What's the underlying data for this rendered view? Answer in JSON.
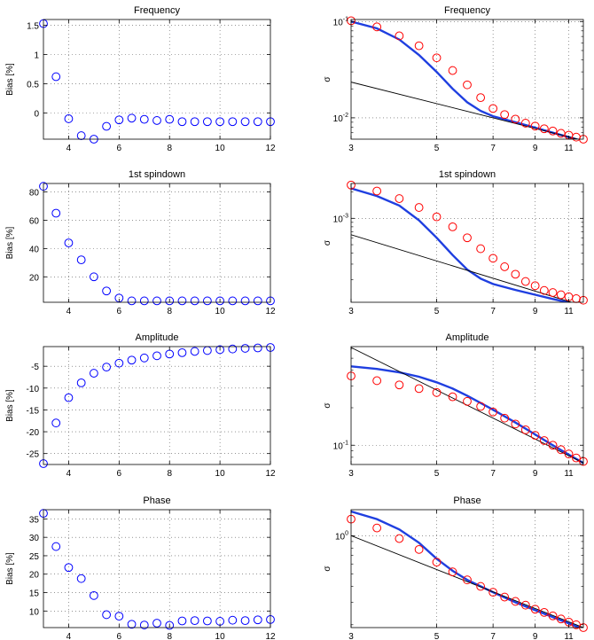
{
  "chart_data": [
    {
      "type": "scatter",
      "scale": "linear",
      "title": "Frequency",
      "ylabel": "Bias [%]",
      "xlim": [
        3,
        12
      ],
      "ylim": [
        -0.45,
        1.6
      ],
      "xticks": [
        4,
        6,
        8,
        10,
        12
      ],
      "xtick_labels": [
        "4",
        "6",
        "8",
        "10",
        "12"
      ],
      "yticks": [
        0,
        0.5,
        1,
        1.5
      ],
      "ytick_labels": [
        "0",
        "0.5",
        "1",
        "1.5"
      ],
      "x": [
        3,
        3.5,
        4,
        4.5,
        5,
        5.5,
        6,
        6.5,
        7,
        7.5,
        8,
        8.5,
        9,
        9.5,
        10,
        10.5,
        11,
        11.5,
        12
      ],
      "series": [
        {
          "name": "bias",
          "color": "#0000ff",
          "marker": "o",
          "y": [
            1.53,
            0.62,
            -0.1,
            -0.39,
            -0.45,
            -0.23,
            -0.12,
            -0.09,
            -0.11,
            -0.13,
            -0.11,
            -0.15,
            -0.15,
            -0.15,
            -0.15,
            -0.15,
            -0.15,
            -0.15,
            -0.15
          ]
        }
      ]
    },
    {
      "type": "line",
      "scale": "loglog",
      "title": "Frequency",
      "ylabel": "σ",
      "xlim": [
        3,
        12
      ],
      "ylim": [
        0.006,
        0.105
      ],
      "xticks": [
        3,
        5,
        7,
        9,
        11
      ],
      "xtick_labels": [
        "3",
        "5",
        "7",
        "9",
        "11"
      ],
      "yticks": [
        0.01,
        0.1
      ],
      "ytick_labels": [
        "10-2",
        "10-1"
      ],
      "x": [
        3,
        3.5,
        4,
        4.5,
        5,
        5.5,
        6,
        6.5,
        7,
        7.5,
        8,
        8.5,
        9,
        9.5,
        10,
        10.5,
        11,
        11.5,
        12
      ],
      "series": [
        {
          "name": "markers",
          "color": "#ff0000",
          "marker": "o",
          "y": [
            0.102,
            0.088,
            0.071,
            0.056,
            0.042,
            0.031,
            0.022,
            0.0162,
            0.0125,
            0.0108,
            0.0097,
            0.0088,
            0.0082,
            0.0077,
            0.0073,
            0.0069,
            0.0066,
            0.0063,
            0.006
          ]
        },
        {
          "name": "thick",
          "color": "#1f3fe0",
          "line": "thick",
          "x": [
            3,
            3.5,
            4,
            4.5,
            5,
            5.5,
            6,
            6.5,
            7,
            8,
            9,
            10,
            11,
            12
          ],
          "y": [
            0.1,
            0.085,
            0.065,
            0.045,
            0.03,
            0.02,
            0.0145,
            0.0118,
            0.0104,
            0.009,
            0.0079,
            0.007,
            0.0063,
            0.0057
          ]
        },
        {
          "name": "thin",
          "color": "#000000",
          "line": "thin",
          "x": [
            3,
            12
          ],
          "y": [
            0.0235,
            0.0058
          ]
        }
      ]
    },
    {
      "type": "scatter",
      "scale": "linear",
      "title": "1st spindown",
      "ylabel": "Bias [%]",
      "xlim": [
        3,
        12
      ],
      "ylim": [
        2,
        86
      ],
      "xticks": [
        4,
        6,
        8,
        10,
        12
      ],
      "xtick_labels": [
        "4",
        "6",
        "8",
        "10",
        "12"
      ],
      "yticks": [
        20,
        40,
        60,
        80
      ],
      "ytick_labels": [
        "20",
        "40",
        "60",
        "80"
      ],
      "x": [
        3,
        3.5,
        4,
        4.5,
        5,
        5.5,
        6,
        6.5,
        7,
        7.5,
        8,
        8.5,
        9,
        9.5,
        10,
        10.5,
        11,
        11.5,
        12
      ],
      "series": [
        {
          "name": "bias",
          "color": "#0000ff",
          "marker": "o",
          "y": [
            84,
            65,
            44,
            32,
            20,
            10,
            5,
            3,
            3,
            3,
            3,
            3,
            3,
            3,
            3,
            3,
            3,
            3,
            3
          ]
        }
      ]
    },
    {
      "type": "line",
      "scale": "loglog",
      "title": "1st spindown",
      "ylabel": "σ",
      "xlim": [
        3,
        12
      ],
      "ylim": [
        0.00011,
        0.0025
      ],
      "xticks": [
        3,
        5,
        7,
        9,
        11
      ],
      "xtick_labels": [
        "3",
        "5",
        "7",
        "9",
        "11"
      ],
      "yticks": [
        0.001
      ],
      "ytick_labels": [
        "10-3"
      ],
      "x": [
        3,
        3.5,
        4,
        4.5,
        5,
        5.5,
        6,
        6.5,
        7,
        7.5,
        8,
        8.5,
        9,
        9.5,
        10,
        10.5,
        11,
        11.5,
        12
      ],
      "series": [
        {
          "name": "markers",
          "color": "#ff0000",
          "marker": "o",
          "y": [
            0.0024,
            0.00205,
            0.00168,
            0.00133,
            0.00104,
            0.0008,
            0.0006,
            0.00045,
            0.00035,
            0.00028,
            0.00023,
            0.00019,
            0.00017,
            0.00015,
            0.000142,
            0.000134,
            0.000127,
            0.000121,
            0.000116
          ]
        },
        {
          "name": "thick",
          "color": "#1f3fe0",
          "line": "thick",
          "x": [
            3,
            3.5,
            4,
            4.5,
            5,
            5.5,
            6,
            6.5,
            7,
            8,
            9,
            10,
            11,
            12
          ],
          "y": [
            0.0022,
            0.0018,
            0.0014,
            0.00095,
            0.0006,
            0.00038,
            0.00026,
            0.000205,
            0.000178,
            0.000152,
            0.000134,
            0.00012,
            0.000109,
            0.0001
          ]
        },
        {
          "name": "thin",
          "color": "#000000",
          "line": "thin",
          "x": [
            3,
            12
          ],
          "y": [
            0.00065,
            0.0001
          ]
        }
      ]
    },
    {
      "type": "scatter",
      "scale": "linear",
      "title": "Amplitude",
      "ylabel": "Bias [%]",
      "xlim": [
        3,
        12
      ],
      "ylim": [
        -27.5,
        -0.5
      ],
      "xticks": [
        4,
        6,
        8,
        10,
        12
      ],
      "xtick_labels": [
        "4",
        "6",
        "8",
        "10",
        "12"
      ],
      "yticks": [
        -25,
        -20,
        -15,
        -10,
        -5
      ],
      "ytick_labels": [
        "-25",
        "-20",
        "-15",
        "-10",
        "-5"
      ],
      "x": [
        3,
        3.5,
        4,
        4.5,
        5,
        5.5,
        6,
        6.5,
        7,
        7.5,
        8,
        8.5,
        9,
        9.5,
        10,
        10.5,
        11,
        11.5,
        12
      ],
      "series": [
        {
          "name": "bias",
          "color": "#0000ff",
          "marker": "o",
          "y": [
            -27.3,
            -18,
            -12.2,
            -8.8,
            -6.6,
            -5.2,
            -4.3,
            -3.6,
            -3.1,
            -2.6,
            -2.2,
            -1.9,
            -1.6,
            -1.4,
            -1.2,
            -1.05,
            -0.9,
            -0.8,
            -0.7
          ]
        }
      ]
    },
    {
      "type": "line",
      "scale": "loglog",
      "title": "Amplitude",
      "ylabel": "σ",
      "xlim": [
        3,
        12
      ],
      "ylim": [
        0.07,
        0.62
      ],
      "xticks": [
        3,
        5,
        7,
        9,
        11
      ],
      "xtick_labels": [
        "3",
        "5",
        "7",
        "9",
        "11"
      ],
      "yticks": [
        0.1
      ],
      "ytick_labels": [
        "10-1"
      ],
      "x": [
        3,
        3.5,
        4,
        4.5,
        5,
        5.5,
        6,
        6.5,
        7,
        7.5,
        8,
        8.5,
        9,
        9.5,
        10,
        10.5,
        11,
        11.5,
        12
      ],
      "series": [
        {
          "name": "markers",
          "color": "#ff0000",
          "marker": "o",
          "y": [
            0.36,
            0.33,
            0.305,
            0.285,
            0.265,
            0.245,
            0.225,
            0.205,
            0.185,
            0.165,
            0.148,
            0.133,
            0.12,
            0.109,
            0.1,
            0.092,
            0.085,
            0.079,
            0.074
          ]
        },
        {
          "name": "thick",
          "color": "#1f3fe0",
          "line": "thick",
          "x": [
            3,
            3.5,
            4,
            4.5,
            5,
            5.5,
            6,
            7,
            8,
            9,
            10,
            11,
            12
          ],
          "y": [
            0.43,
            0.41,
            0.385,
            0.355,
            0.32,
            0.285,
            0.25,
            0.193,
            0.152,
            0.122,
            0.1,
            0.084,
            0.072
          ]
        },
        {
          "name": "thin",
          "color": "#000000",
          "line": "thin",
          "x": [
            3,
            12
          ],
          "y": [
            0.61,
            0.072
          ]
        }
      ]
    },
    {
      "type": "scatter",
      "scale": "linear",
      "title": "Phase",
      "ylabel": "Bias [%]",
      "xlim": [
        3,
        12
      ],
      "ylim": [
        5.5,
        37.5
      ],
      "xticks": [
        4,
        6,
        8,
        10,
        12
      ],
      "xtick_labels": [
        "4",
        "6",
        "8",
        "10",
        "12"
      ],
      "yticks": [
        10,
        15,
        20,
        25,
        30,
        35
      ],
      "ytick_labels": [
        "10",
        "15",
        "20",
        "25",
        "30",
        "35"
      ],
      "x": [
        3,
        3.5,
        4,
        4.5,
        5,
        5.5,
        6,
        6.5,
        7,
        7.5,
        8,
        8.5,
        9,
        9.5,
        10,
        10.5,
        11,
        11.5,
        12
      ],
      "series": [
        {
          "name": "bias",
          "color": "#0000ff",
          "marker": "o",
          "y": [
            36.5,
            27.5,
            21.8,
            18.8,
            14.2,
            9,
            8.6,
            6.4,
            6.2,
            6.7,
            6.1,
            7.3,
            7.4,
            7.3,
            7.2,
            7.5,
            7.4,
            7.6,
            7.7
          ]
        }
      ]
    },
    {
      "type": "line",
      "scale": "loglog",
      "title": "Phase",
      "ylabel": "σ",
      "xlim": [
        3,
        12
      ],
      "ylim": [
        0.19,
        1.6
      ],
      "xticks": [
        3,
        5,
        7,
        9,
        11
      ],
      "xtick_labels": [
        "3",
        "5",
        "7",
        "9",
        "11"
      ],
      "yticks": [
        1
      ],
      "ytick_labels": [
        "100"
      ],
      "x": [
        3,
        3.5,
        4,
        4.5,
        5,
        5.5,
        6,
        6.5,
        7,
        7.5,
        8,
        8.5,
        9,
        9.5,
        10,
        10.5,
        11,
        11.5,
        12
      ],
      "series": [
        {
          "name": "markers",
          "color": "#ff0000",
          "marker": "o",
          "y": [
            1.35,
            1.15,
            0.95,
            0.78,
            0.62,
            0.52,
            0.45,
            0.4,
            0.36,
            0.33,
            0.305,
            0.285,
            0.265,
            0.25,
            0.235,
            0.222,
            0.21,
            0.2,
            0.19
          ]
        },
        {
          "name": "thick",
          "color": "#1f3fe0",
          "line": "thick",
          "x": [
            3,
            3.5,
            4,
            4.5,
            5,
            5.5,
            6,
            7,
            8,
            9,
            10,
            11,
            12
          ],
          "y": [
            1.55,
            1.35,
            1.12,
            0.88,
            0.66,
            0.53,
            0.45,
            0.36,
            0.3,
            0.26,
            0.23,
            0.205,
            0.185
          ]
        },
        {
          "name": "thin",
          "color": "#000000",
          "line": "thin",
          "x": [
            3,
            12
          ],
          "y": [
            1.0,
            0.19
          ]
        }
      ]
    }
  ]
}
